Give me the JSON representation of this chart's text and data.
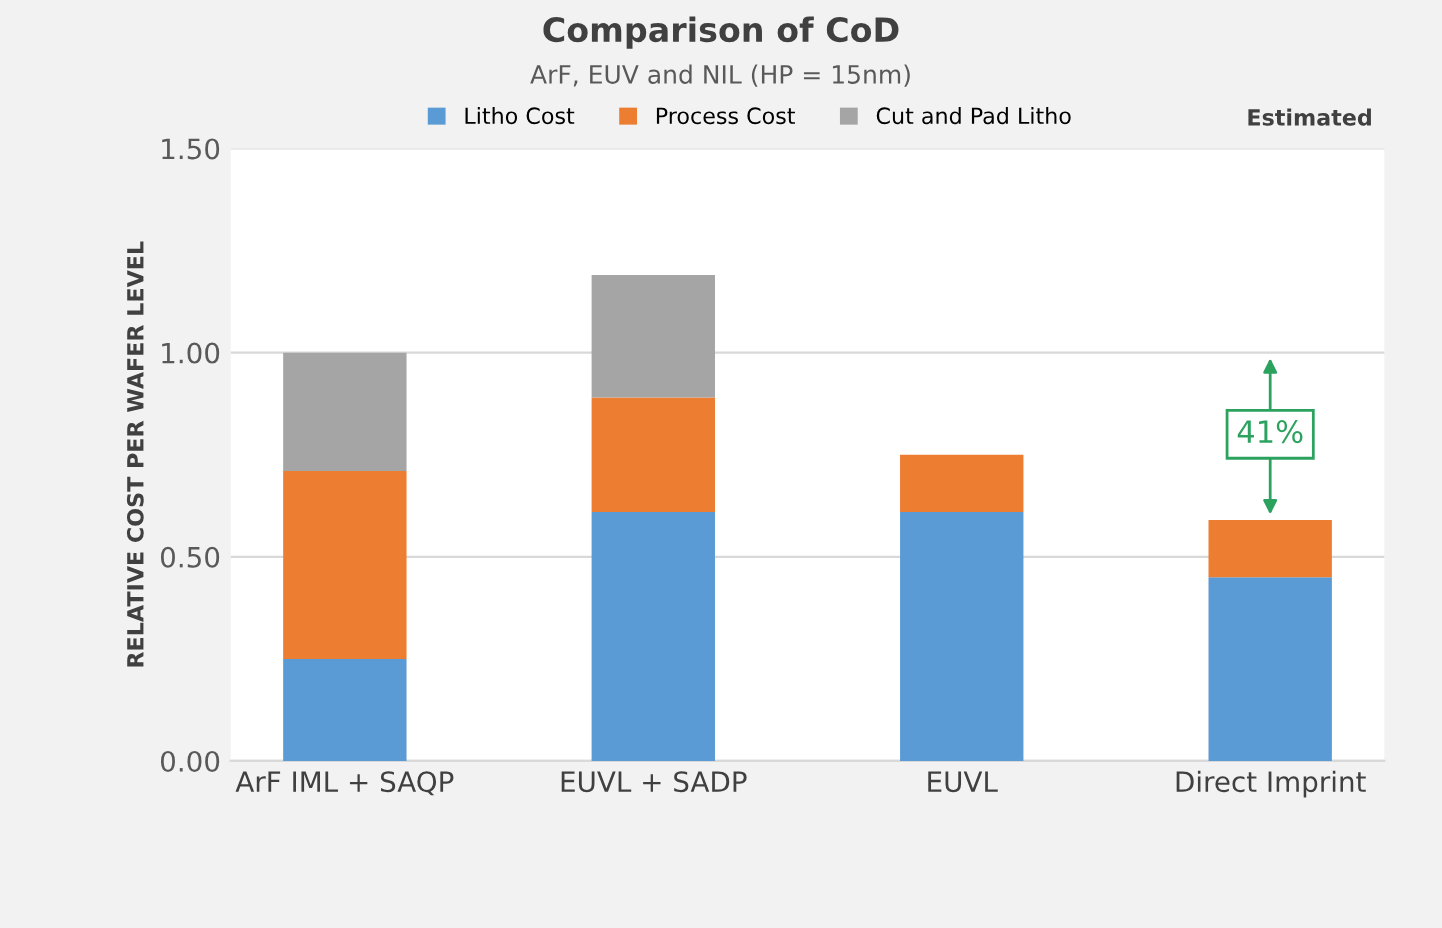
{
  "chart_data": {
    "type": "bar",
    "title": "Comparison of CoD",
    "subtitle": "ArF, EUV and NIL (HP = 15nm)",
    "ylabel": "RELATIVE COST PER WAFER LEVEL",
    "categories": [
      "ArF IML + SAQP",
      "EUVL + SADP",
      "EUVL",
      "Direct Imprint"
    ],
    "stacked": true,
    "series": [
      {
        "name": "Litho Cost",
        "color": "#5b9bd5",
        "values": [
          0.25,
          0.61,
          0.61,
          0.45
        ]
      },
      {
        "name": "Process Cost",
        "color": "#ed7d31",
        "values": [
          0.46,
          0.28,
          0.14,
          0.14
        ]
      },
      {
        "name": "Cut and Pad Litho",
        "color": "#a5a5a5",
        "values": [
          0.29,
          0.3,
          null,
          null
        ]
      }
    ],
    "ylim": [
      0,
      1.5
    ],
    "yticks": [
      {
        "value": 0,
        "label": "0.00"
      },
      {
        "value": 0.5,
        "label": "0.50"
      },
      {
        "value": 1,
        "label": "1.00"
      },
      {
        "value": 1.5,
        "label": "1.50"
      }
    ],
    "grid": "y",
    "legend": "top",
    "annotations": [
      "Estimated",
      {
        "text": "41%",
        "x": "Direct Imprint",
        "y": 0.8
      }
    ]
  }
}
